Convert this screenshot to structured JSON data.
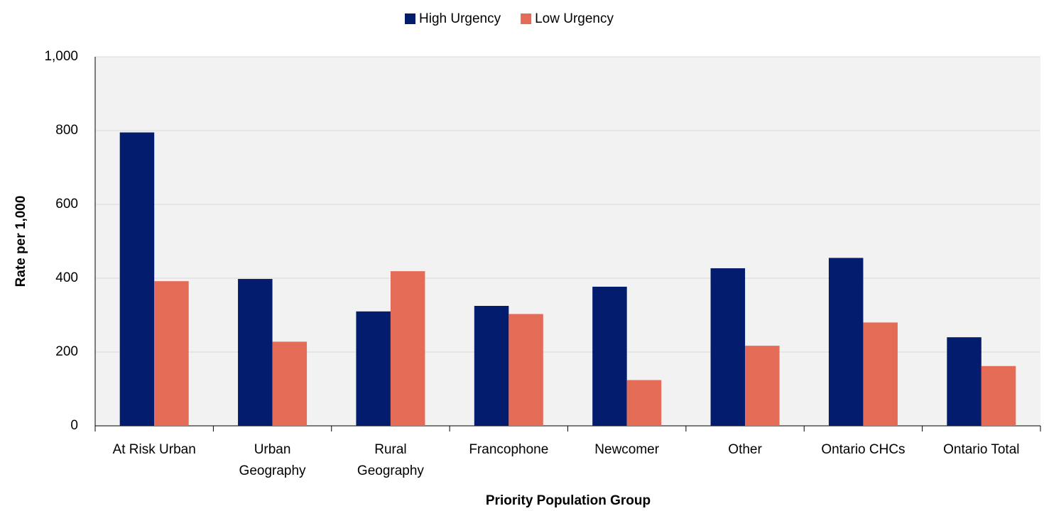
{
  "chart_data": {
    "type": "bar",
    "x_label": "Priority Population Group",
    "y_label": "Rate per 1,000",
    "categories": [
      "At Risk Urban",
      "Urban\nGeography",
      "Rural\nGeography",
      "Francophone",
      "Newcomer",
      "Other",
      "Ontario CHCs",
      "Ontario Total"
    ],
    "series": [
      {
        "name": "High Urgency",
        "color": "#041c6e",
        "values": [
          795,
          398,
          310,
          325,
          377,
          427,
          455,
          240
        ]
      },
      {
        "name": "Low Urgency",
        "color": "#e46c57",
        "values": [
          392,
          228,
          419,
          303,
          124,
          217,
          280,
          162
        ]
      }
    ],
    "ylim": [
      0,
      1000
    ],
    "yticks": [
      0,
      200,
      400,
      600,
      800,
      {
        "value": 1000,
        "label": "1,000"
      }
    ],
    "grid": true,
    "legend": "top"
  }
}
